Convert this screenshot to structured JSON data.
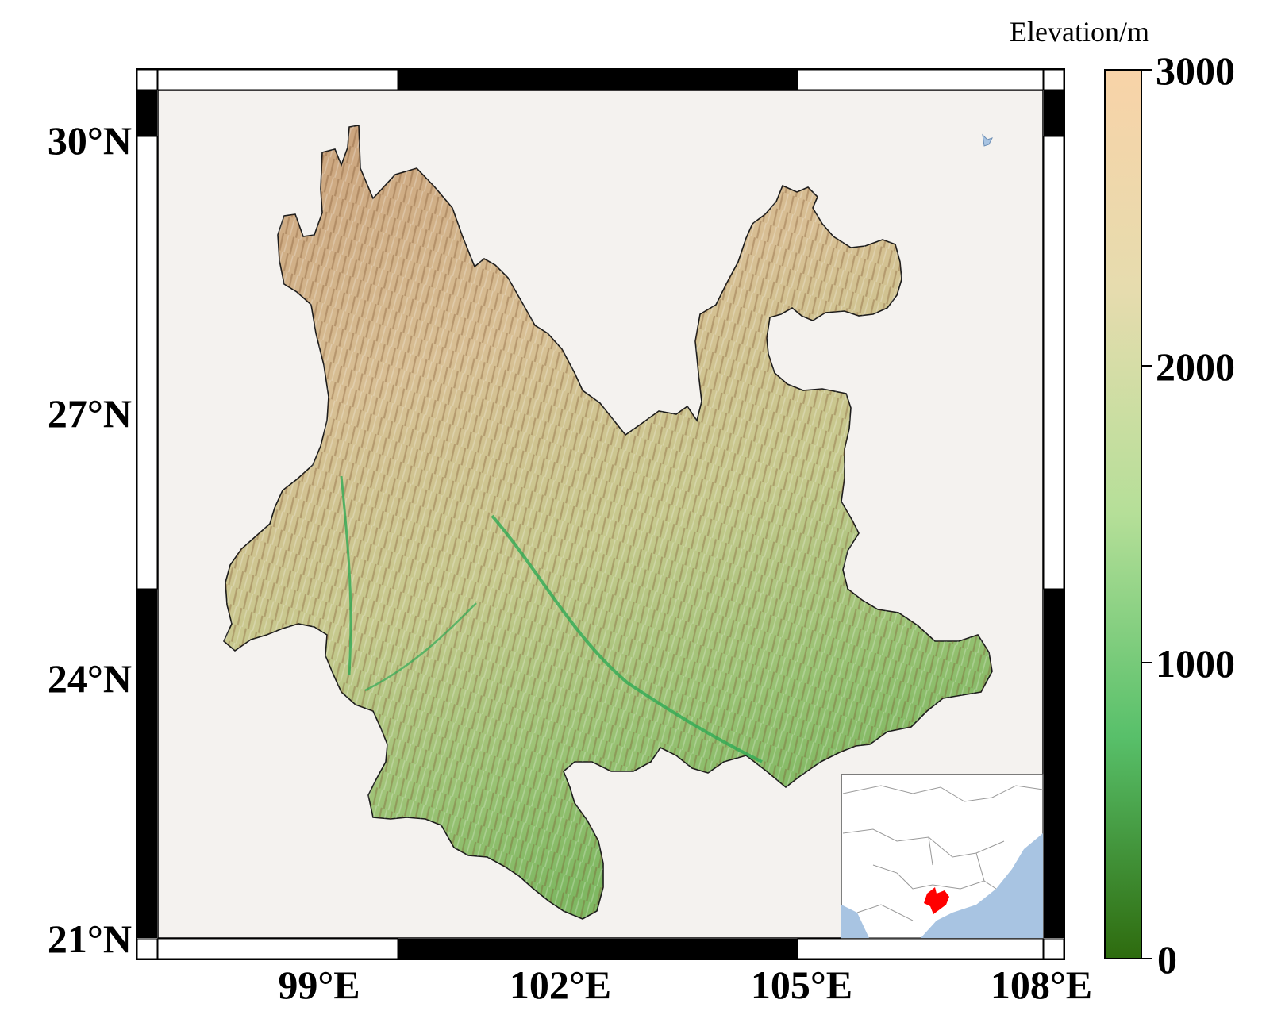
{
  "map": {
    "lat_ticks": [
      "30°N",
      "27°N",
      "24°N",
      "21°N"
    ],
    "lon_ticks": [
      "99°E",
      "102°E",
      "105°E",
      "108°E"
    ],
    "land_color": "#f4f2ef",
    "frame_color": "#000000"
  },
  "colorbar": {
    "title": "Elevation/m",
    "ticks": [
      "3000",
      "2000",
      "1000",
      "0"
    ],
    "min": 0,
    "max": 3000,
    "colors": [
      "#2e6b0e",
      "#58c06a",
      "#b5df98",
      "#e6dcae",
      "#f8d3a8"
    ]
  },
  "inset": {
    "highlight_color": "#ff0000",
    "ocean_color": "#a8c4e2"
  }
}
